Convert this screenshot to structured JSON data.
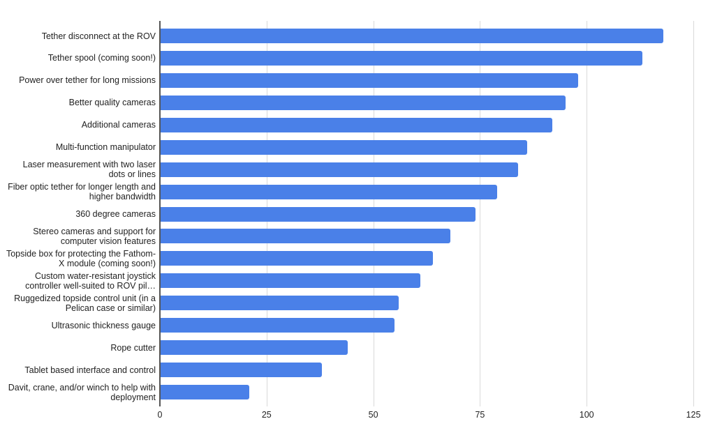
{
  "chart_data": {
    "type": "bar",
    "orientation": "horizontal",
    "title": "",
    "xlabel": "",
    "ylabel": "",
    "xlim": [
      0,
      125
    ],
    "grid": true,
    "legend": "none",
    "bar_color": "#4a80e8",
    "x_ticks": [
      "0",
      "25",
      "50",
      "75",
      "100",
      "125"
    ],
    "categories": [
      "Tether disconnect at the ROV",
      "Tether spool (coming soon!)",
      "Power over tether for long missions",
      "Better quality cameras",
      "Additional cameras",
      "Multi-function manipulator",
      "Laser measurement with two laser dots or lines",
      "Fiber optic tether for longer length and higher bandwidth",
      "360 degree cameras",
      "Stereo cameras and support for computer vision features",
      "Topside box for protecting the Fathom-X module (coming soon!)",
      "Custom water-resistant joystick controller well-suited to ROV pil…",
      "Ruggedized topside control unit (in a Pelican case or similar)",
      "Ultrasonic thickness gauge",
      "Rope cutter",
      "Tablet based interface and control",
      "Davit, crane, and/or winch to help with deployment"
    ],
    "values": [
      118,
      113,
      98,
      95,
      92,
      86,
      84,
      79,
      74,
      68,
      64,
      61,
      56,
      55,
      44,
      38,
      21
    ]
  }
}
